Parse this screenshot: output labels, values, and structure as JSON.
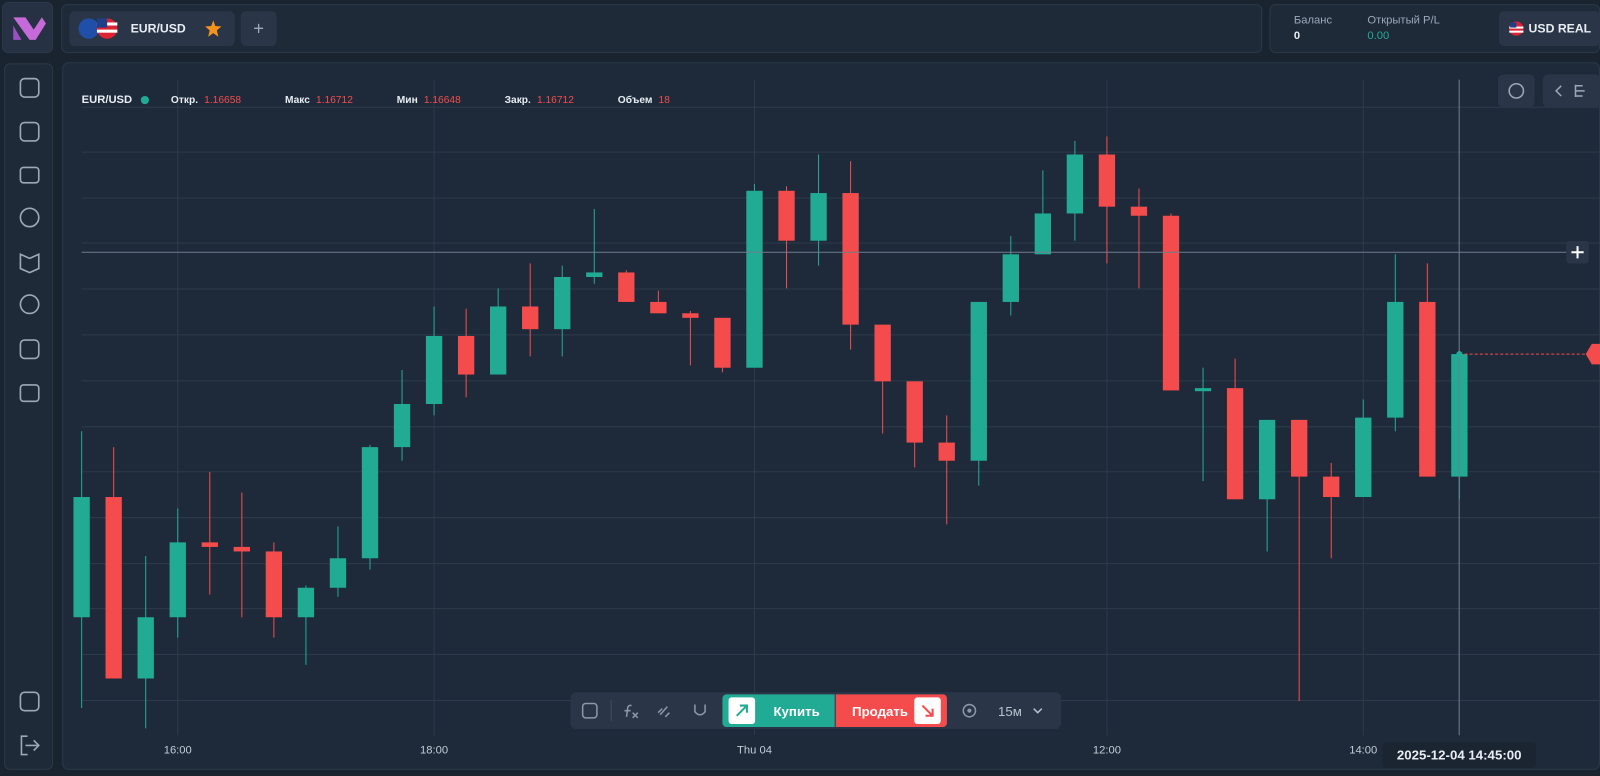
{
  "header": {
    "symbol_tab": "EUR/USD",
    "add": "+",
    "balance_label": "Баланс",
    "balance": 0,
    "pl_label": "Открытый P/L",
    "pl": "0.00",
    "account": "USD REAL"
  },
  "legend": {
    "symbol": "EUR/USD",
    "items": [
      {
        "label": "Откр.",
        "value": 1.16658
      },
      {
        "label": "Макс",
        "value": 1.16712
      },
      {
        "label": "Мин",
        "value": 1.16648
      },
      {
        "label": "Закр.",
        "value": 1.16712
      },
      {
        "label": "Объем",
        "value": 18
      }
    ]
  },
  "toolbar": {
    "buy": "Купить",
    "sell": "Продать",
    "interval": "15м"
  },
  "crosshair_time": "2025-12-04 14:45:00",
  "chart_data": {
    "type": "candlestick",
    "categories": [
      null,
      null,
      null,
      "16:00",
      null,
      null,
      null,
      null,
      null,
      null,
      null,
      "18:00",
      null,
      null,
      null,
      null,
      null,
      null,
      null,
      null,
      null,
      "Thu 04",
      null,
      null,
      null,
      null,
      null,
      null,
      null,
      null,
      null,
      null,
      "12:00",
      null,
      null,
      null,
      null,
      null,
      null,
      null,
      "14:00",
      null,
      null,
      null
    ],
    "open": [
      1.16596,
      1.16649,
      1.16569,
      1.16596,
      1.16629,
      1.16627,
      1.16625,
      1.16596,
      1.16609,
      1.16622,
      1.16671,
      1.1669,
      1.1672,
      1.16703,
      1.16733,
      1.16723,
      1.16746,
      1.16748,
      1.16735,
      1.1673,
      1.16728,
      1.16706,
      1.16784,
      1.16762,
      1.16783,
      1.16725,
      1.167,
      1.16673,
      1.16665,
      1.16735,
      1.16756,
      1.16774,
      1.168,
      1.16777,
      1.16773,
      1.16696,
      1.16697,
      1.16648,
      1.16683,
      1.16658,
      1.16649,
      1.16684,
      1.16735,
      1.16658
    ],
    "high": [
      1.16678,
      1.16671,
      1.16623,
      1.16644,
      1.1666,
      1.16651,
      1.16629,
      1.1661,
      1.16636,
      1.16672,
      1.16705,
      1.16733,
      1.16732,
      1.16741,
      1.16752,
      1.16751,
      1.16776,
      1.16749,
      1.1674,
      1.16731,
      1.16728,
      1.16787,
      1.16786,
      1.168,
      1.16797,
      1.16725,
      1.167,
      1.16685,
      1.16735,
      1.16764,
      1.16793,
      1.16806,
      1.16808,
      1.16785,
      1.16774,
      1.16706,
      1.1671,
      1.16683,
      1.16683,
      1.16664,
      1.16692,
      1.16756,
      1.16752,
      1.16712
    ],
    "low": [
      1.16556,
      1.16569,
      1.16547,
      1.16587,
      1.16606,
      1.16596,
      1.16587,
      1.16575,
      1.16605,
      1.16617,
      1.16665,
      1.16685,
      1.16693,
      1.16703,
      1.16711,
      1.16711,
      1.16743,
      1.16735,
      1.1673,
      1.16707,
      1.16704,
      1.16706,
      1.16741,
      1.16751,
      1.16714,
      1.16677,
      1.16662,
      1.16637,
      1.16654,
      1.16729,
      1.16756,
      1.16762,
      1.16752,
      1.16741,
      1.16696,
      1.16656,
      1.16648,
      1.16625,
      1.16559,
      1.16622,
      1.16649,
      1.16678,
      1.16658,
      1.16648
    ],
    "close": [
      1.16649,
      1.16569,
      1.16596,
      1.16629,
      1.16627,
      1.16625,
      1.16596,
      1.16609,
      1.16622,
      1.16671,
      1.1669,
      1.1672,
      1.16703,
      1.16733,
      1.16723,
      1.16746,
      1.16748,
      1.16735,
      1.1673,
      1.16728,
      1.16706,
      1.16784,
      1.16762,
      1.16783,
      1.16725,
      1.167,
      1.16673,
      1.16665,
      1.16735,
      1.16756,
      1.16774,
      1.168,
      1.16777,
      1.16773,
      1.16696,
      1.16697,
      1.16648,
      1.16683,
      1.16658,
      1.16649,
      1.16684,
      1.16735,
      1.16658,
      1.16712
    ],
    "up_color": "#22ab94",
    "down_color": "#f44c4c",
    "ylim": [
      1.16544,
      1.16833
    ],
    "grid": true
  }
}
